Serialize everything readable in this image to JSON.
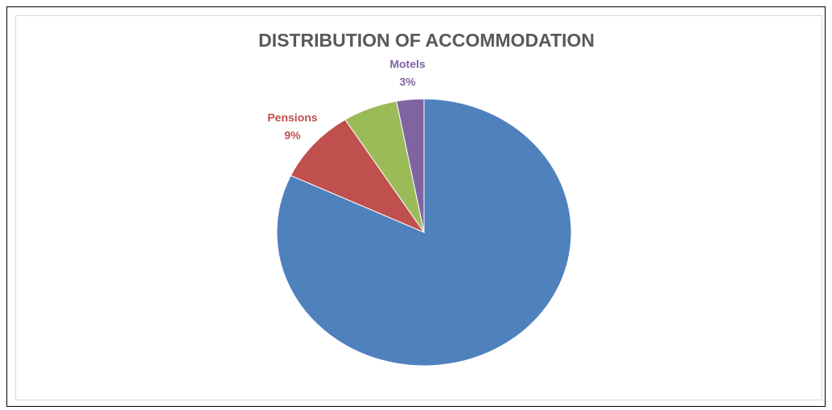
{
  "chart_data": {
    "type": "pie",
    "title": "DISTRIBUTION OF ACCOMMODATION",
    "categories": [
      null,
      "Pensions",
      null,
      "Motels"
    ],
    "values": [
      82,
      9,
      6,
      3
    ],
    "value_labels": [
      null,
      "9%",
      null,
      "3%"
    ],
    "colors": [
      "#4f81bd",
      "#c0504d",
      "#9bbb59",
      "#8064a2"
    ]
  }
}
